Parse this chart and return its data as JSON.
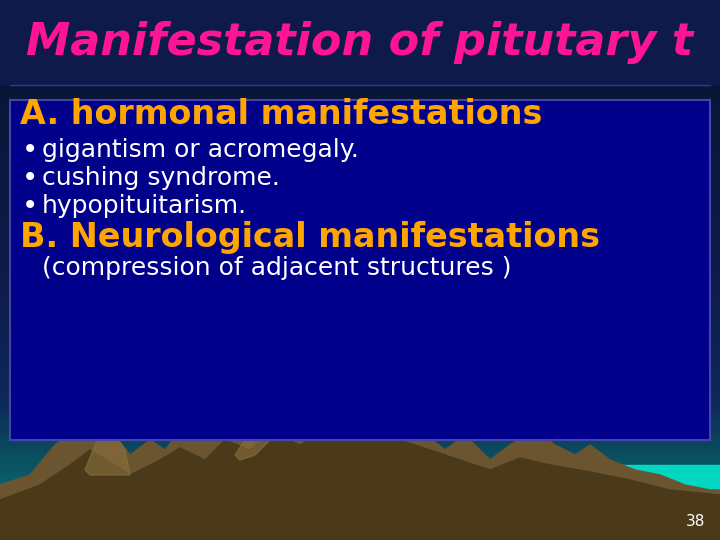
{
  "title": "Manifestation of pitutary t",
  "title_color": "#FF1493",
  "title_fontsize": 32,
  "bg_top_color": "#0d1a4a",
  "bg_bottom_color": "#1a6a7a",
  "box_bg": "#00008B",
  "box_border": "#4444aa",
  "section_a_title": "A. hormonal manifestations",
  "section_a_color": "#FFA500",
  "section_a_fontsize": 24,
  "bullets": [
    "gigantism or acromegaly.",
    "cushing syndrome.",
    "hypopituitarism."
  ],
  "bullet_color": "#FFFFFF",
  "bullet_fontsize": 18,
  "section_b_title": "B. Neurological manifestations",
  "section_b_color": "#FFA500",
  "section_b_fontsize": 24,
  "section_b_sub": "(compression of adjacent structures )",
  "section_b_sub_color": "#FFFFFF",
  "section_b_sub_fontsize": 18,
  "page_number": "38",
  "page_number_color": "#FFFFFF",
  "mountain_dark": "#4a3a1a",
  "mountain_mid": "#6b5530",
  "mountain_light": "#8a7040",
  "teal_color": "#00CED1",
  "teal_bg": "#0a7a80"
}
